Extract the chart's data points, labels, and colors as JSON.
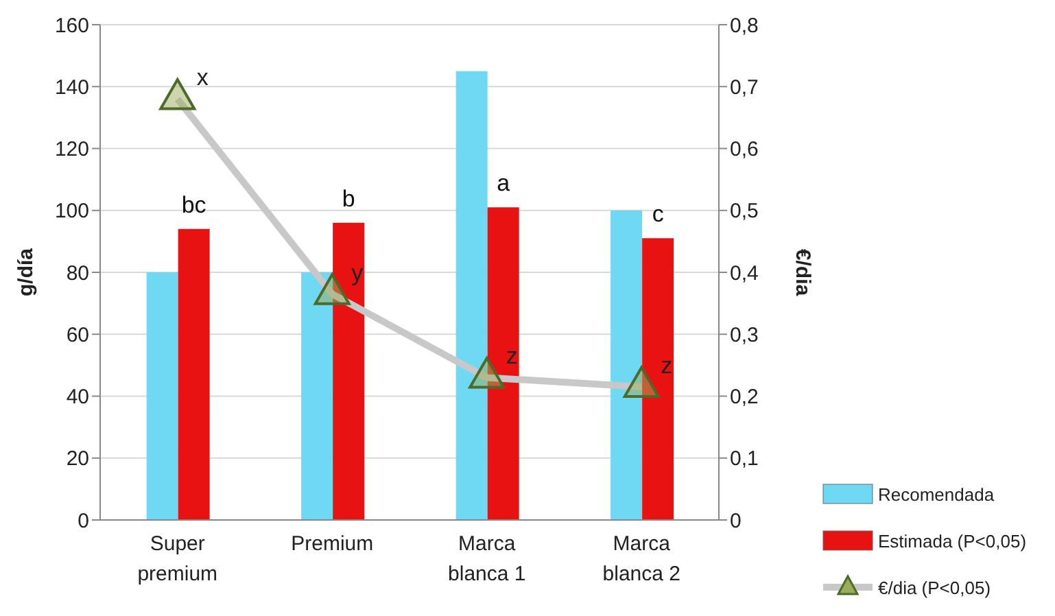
{
  "chart_data": {
    "type": "bar",
    "ylabel": "g/día",
    "y2label": "€/dia",
    "categories": [
      "Super premium",
      "Premium",
      "Marca blanca 1",
      "Marca blanca 2"
    ],
    "series": [
      {
        "name": "Recomendada",
        "color": "#6fd8f2",
        "values": [
          80,
          80,
          145,
          100
        ]
      },
      {
        "name": "Estimada (P<0,05)",
        "color": "#e81212",
        "values": [
          94,
          96,
          101,
          91
        ],
        "value_labels": [
          "bc",
          "b",
          "a",
          "c"
        ]
      },
      {
        "name": "€/dia (P<0,05)",
        "type": "line",
        "axis": "y2",
        "color": "#c8c8c8",
        "marker": "triangle",
        "values": [
          0.68,
          0.365,
          0.23,
          0.215
        ],
        "value_labels": [
          "x",
          "y",
          "z",
          "z"
        ]
      }
    ],
    "ylim": [
      0,
      160
    ],
    "yticks": [
      0,
      20,
      40,
      60,
      80,
      100,
      120,
      140,
      160
    ],
    "y2lim": [
      0,
      0.8
    ],
    "y2ticks": [
      {
        "value": 0,
        "label": "0"
      },
      {
        "value": 0.1,
        "label": "0,1"
      },
      {
        "value": 0.2,
        "label": "0,2"
      },
      {
        "value": 0.3,
        "label": "0,3"
      },
      {
        "value": 0.4,
        "label": "0,4"
      },
      {
        "value": 0.5,
        "label": "0,5"
      },
      {
        "value": 0.6,
        "label": "0,6"
      },
      {
        "value": 0.7,
        "label": "0,7"
      },
      {
        "value": 0.8,
        "label": "0,8"
      }
    ],
    "grid": "y",
    "legend": "bottom right"
  }
}
